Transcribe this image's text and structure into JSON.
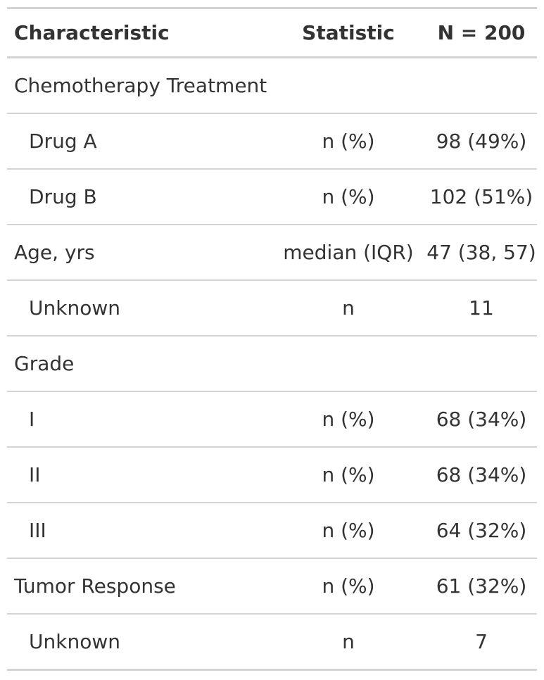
{
  "headers": {
    "characteristic": "Characteristic",
    "statistic": "Statistic",
    "n": "N = 200"
  },
  "rows": [
    {
      "label": "Chemotherapy Treatment",
      "indent": false,
      "statistic": "",
      "value": ""
    },
    {
      "label": "Drug A",
      "indent": true,
      "statistic": "n (%)",
      "value": "98 (49%)"
    },
    {
      "label": "Drug B",
      "indent": true,
      "statistic": "n (%)",
      "value": "102 (51%)"
    },
    {
      "label": "Age, yrs",
      "indent": false,
      "statistic": "median (IQR)",
      "value": "47 (38, 57)"
    },
    {
      "label": "Unknown",
      "indent": true,
      "statistic": "n",
      "value": "11"
    },
    {
      "label": "Grade",
      "indent": false,
      "statistic": "",
      "value": ""
    },
    {
      "label": "I",
      "indent": true,
      "statistic": "n (%)",
      "value": "68 (34%)"
    },
    {
      "label": "II",
      "indent": true,
      "statistic": "n (%)",
      "value": "68 (34%)"
    },
    {
      "label": "III",
      "indent": true,
      "statistic": "n (%)",
      "value": "64 (32%)"
    },
    {
      "label": "Tumor Response",
      "indent": false,
      "statistic": "n (%)",
      "value": "61 (32%)"
    },
    {
      "label": "Unknown",
      "indent": true,
      "statistic": "n",
      "value": "7"
    }
  ]
}
